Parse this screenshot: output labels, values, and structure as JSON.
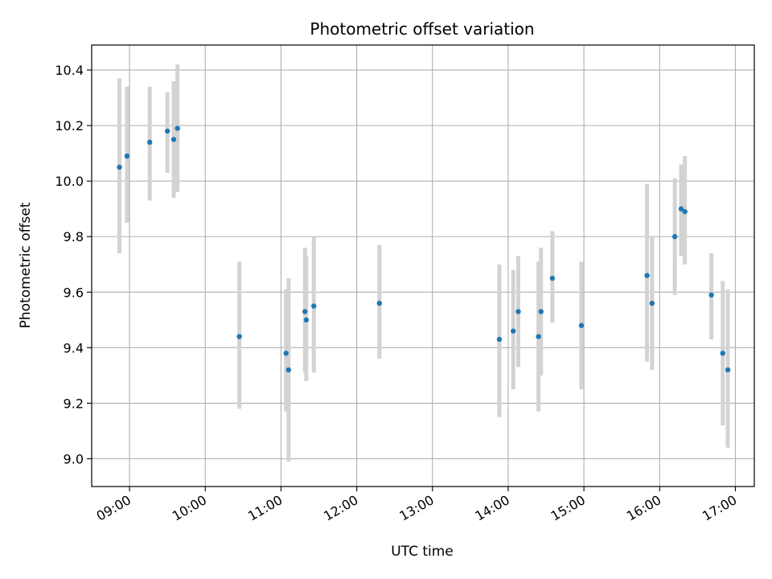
{
  "chart_data": {
    "type": "scatter",
    "title": "Photometric offset variation",
    "xlabel": "UTC time",
    "ylabel": "Photometric offset",
    "x_unit": "UTC time (HH:MM)",
    "xlim": [
      "08:30",
      "17:15"
    ],
    "ylim": [
      8.9,
      10.49
    ],
    "grid": true,
    "colors": {
      "points": "#1f77b4",
      "errorbars": "#d3d3d3",
      "grid": "#b0b0b0"
    },
    "x_ticks": [
      "09:00",
      "10:00",
      "11:00",
      "12:00",
      "13:00",
      "14:00",
      "15:00",
      "16:00",
      "17:00"
    ],
    "y_ticks": [
      "9.0",
      "9.2",
      "9.4",
      "9.6",
      "9.8",
      "10.0",
      "10.2",
      "10.4"
    ],
    "points": [
      {
        "x": "08:52",
        "y": 10.05,
        "lo": 9.74,
        "hi": 10.37
      },
      {
        "x": "08:58",
        "y": 10.09,
        "lo": 9.85,
        "hi": 10.34
      },
      {
        "x": "09:16",
        "y": 10.14,
        "lo": 9.93,
        "hi": 10.34
      },
      {
        "x": "09:30",
        "y": 10.18,
        "lo": 10.03,
        "hi": 10.32
      },
      {
        "x": "09:35",
        "y": 10.15,
        "lo": 9.94,
        "hi": 10.36
      },
      {
        "x": "09:38",
        "y": 10.19,
        "lo": 9.96,
        "hi": 10.42
      },
      {
        "x": "10:27",
        "y": 9.44,
        "lo": 9.18,
        "hi": 9.71
      },
      {
        "x": "11:04",
        "y": 9.38,
        "lo": 9.17,
        "hi": 9.61
      },
      {
        "x": "11:06",
        "y": 9.32,
        "lo": 8.99,
        "hi": 9.65
      },
      {
        "x": "11:19",
        "y": 9.53,
        "lo": 9.31,
        "hi": 9.76
      },
      {
        "x": "11:20",
        "y": 9.5,
        "lo": 9.28,
        "hi": 9.73
      },
      {
        "x": "11:26",
        "y": 9.55,
        "lo": 9.31,
        "hi": 9.8
      },
      {
        "x": "12:18",
        "y": 9.56,
        "lo": 9.36,
        "hi": 9.77
      },
      {
        "x": "13:53",
        "y": 9.43,
        "lo": 9.15,
        "hi": 9.7
      },
      {
        "x": "14:04",
        "y": 9.46,
        "lo": 9.25,
        "hi": 9.68
      },
      {
        "x": "14:08",
        "y": 9.53,
        "lo": 9.33,
        "hi": 9.73
      },
      {
        "x": "14:24",
        "y": 9.44,
        "lo": 9.17,
        "hi": 9.71
      },
      {
        "x": "14:26",
        "y": 9.53,
        "lo": 9.3,
        "hi": 9.76
      },
      {
        "x": "14:35",
        "y": 9.65,
        "lo": 9.49,
        "hi": 9.82
      },
      {
        "x": "14:58",
        "y": 9.48,
        "lo": 9.25,
        "hi": 9.71
      },
      {
        "x": "15:50",
        "y": 9.66,
        "lo": 9.35,
        "hi": 9.99
      },
      {
        "x": "15:54",
        "y": 9.56,
        "lo": 9.32,
        "hi": 9.8
      },
      {
        "x": "16:12",
        "y": 9.8,
        "lo": 9.59,
        "hi": 10.01
      },
      {
        "x": "16:17",
        "y": 9.9,
        "lo": 9.73,
        "hi": 10.06
      },
      {
        "x": "16:20",
        "y": 9.89,
        "lo": 9.7,
        "hi": 10.09
      },
      {
        "x": "16:41",
        "y": 9.59,
        "lo": 9.43,
        "hi": 9.74
      },
      {
        "x": "16:50",
        "y": 9.38,
        "lo": 9.12,
        "hi": 9.64
      },
      {
        "x": "16:54",
        "y": 9.32,
        "lo": 9.04,
        "hi": 9.61
      }
    ]
  }
}
